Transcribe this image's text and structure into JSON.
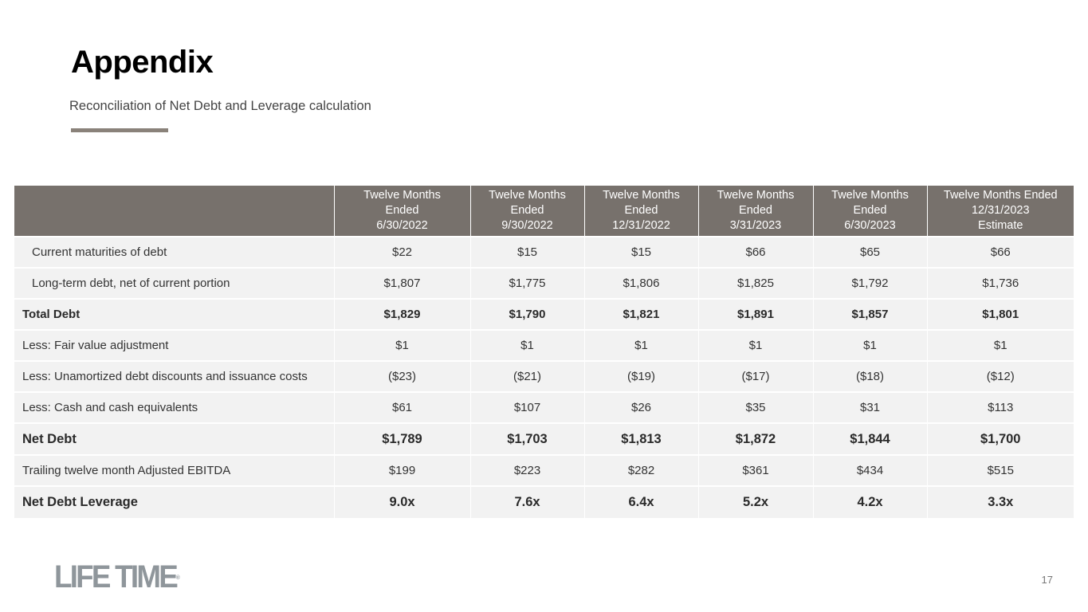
{
  "header": {
    "title": "Appendix",
    "subtitle": "Reconciliation of Net Debt and Leverage calculation"
  },
  "table": {
    "columns": [
      {
        "line1": "Twelve Months",
        "line2": "Ended",
        "line3": "6/30/2022"
      },
      {
        "line1": "Twelve Months",
        "line2": "Ended",
        "line3": "9/30/2022"
      },
      {
        "line1": "Twelve Months",
        "line2": "Ended",
        "line3": "12/31/2022"
      },
      {
        "line1": "Twelve Months",
        "line2": "Ended",
        "line3": "3/31/2023"
      },
      {
        "line1": "Twelve Months",
        "line2": "Ended",
        "line3": "6/30/2023"
      },
      {
        "line1": "Twelve Months Ended",
        "line2": "12/31/2023",
        "line3": "Estimate"
      }
    ],
    "rows": [
      {
        "label": "Current maturities of debt",
        "values": [
          "$22",
          "$15",
          "$15",
          "$66",
          "$65",
          "$66"
        ]
      },
      {
        "label": "Long-term debt, net of current portion",
        "values": [
          "$1,807",
          "$1,775",
          "$1,806",
          "$1,825",
          "$1,792",
          "$1,736"
        ]
      },
      {
        "label": "Total Debt",
        "values": [
          "$1,829",
          "$1,790",
          "$1,821",
          "$1,891",
          "$1,857",
          "$1,801"
        ]
      },
      {
        "label": "Less: Fair value adjustment",
        "values": [
          "$1",
          "$1",
          "$1",
          "$1",
          "$1",
          "$1"
        ]
      },
      {
        "label": "Less: Unamortized debt discounts and issuance costs",
        "values": [
          "($23)",
          "($21)",
          "($19)",
          "($17)",
          "($18)",
          "($12)"
        ]
      },
      {
        "label": "Less: Cash and cash equivalents",
        "values": [
          "$61",
          "$107",
          "$26",
          "$35",
          "$31",
          "$113"
        ]
      },
      {
        "label": "Net Debt",
        "values": [
          "$1,789",
          "$1,703",
          "$1,813",
          "$1,872",
          "$1,844",
          "$1,700"
        ]
      },
      {
        "label": "Trailing twelve month Adjusted EBITDA",
        "values": [
          "$199",
          "$223",
          "$282",
          "$361",
          "$434",
          "$515"
        ]
      },
      {
        "label": "Net Debt Leverage",
        "values": [
          "9.0x",
          "7.6x",
          "6.4x",
          "5.2x",
          "4.2x",
          "3.3x"
        ]
      }
    ]
  },
  "footer": {
    "logo_text": "LIFE TIME",
    "logo_mark": "®",
    "page_number": "17"
  },
  "colors": {
    "header_bg": "#77716c",
    "row_bg": "#f2f2f2",
    "rule": "#8a827a",
    "logo": "#8f969b"
  }
}
